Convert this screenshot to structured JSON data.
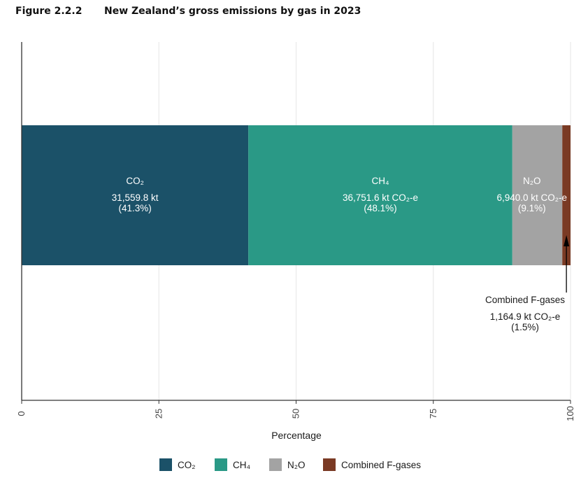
{
  "figure": {
    "number": "Figure 2.2.2",
    "title": "New Zealand’s gross emissions by gas in 2023"
  },
  "colors": {
    "co2": "#1b5168",
    "ch4": "#2a9986",
    "n2o": "#a3a3a3",
    "fgas": "#7a3a24",
    "grid": "#e6e6e6",
    "axis": "#333333",
    "label_text": "#ffffff",
    "text": "#1a1a1a"
  },
  "chart_data": {
    "type": "bar",
    "orientation": "horizontal",
    "stacked": true,
    "title": "New Zealand’s gross emissions by gas in 2023",
    "xlabel": "Percentage",
    "ylabel": "",
    "xlim": [
      0,
      100
    ],
    "xticks": [
      "0",
      "25",
      "50",
      "75",
      "100"
    ],
    "xtick_values": [
      0,
      25,
      50,
      75,
      100
    ],
    "grid": true,
    "legend_position": "bottom",
    "series": [
      {
        "key": "co2",
        "name": "CO₂",
        "value": 41.3,
        "label_gas": "CO₂",
        "label_amount": "31,559.8 kt",
        "label_pct": "(41.3%)"
      },
      {
        "key": "ch4",
        "name": "CH₄",
        "value": 48.1,
        "label_gas": "CH₄",
        "label_amount": "36,751.6 kt CO₂-e",
        "label_pct": "(48.1%)"
      },
      {
        "key": "n2o",
        "name": "N₂O",
        "value": 9.1,
        "label_gas": "N₂O",
        "label_amount": "6,940.0 kt CO₂-e",
        "label_pct": "(9.1%)"
      },
      {
        "key": "fgas",
        "name": "Combined F-gases",
        "value": 1.5,
        "label_gas": "",
        "label_amount": "",
        "label_pct": ""
      }
    ],
    "annotation": {
      "series": "fgas",
      "line1": "Combined F-gases",
      "line2": "1,164.9 kt CO₂-e",
      "line3": "(1.5%)"
    },
    "legend": [
      "CO₂",
      "CH₄",
      "N₂O",
      "Combined F-gases"
    ]
  }
}
